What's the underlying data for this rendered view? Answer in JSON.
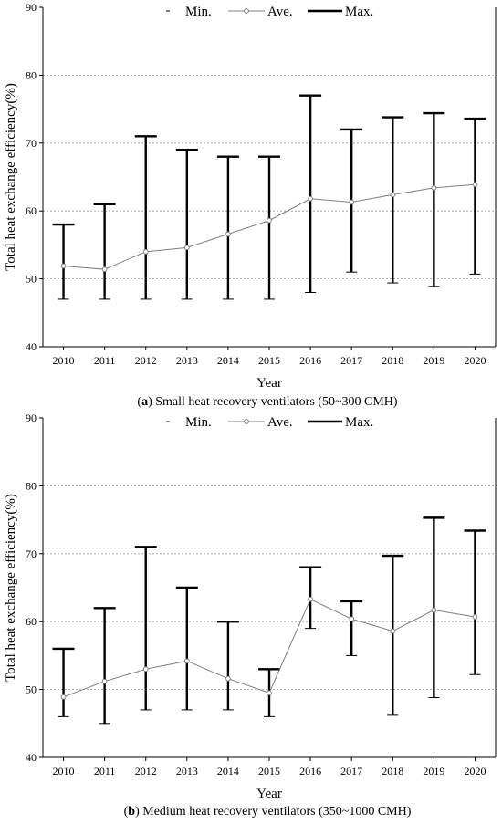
{
  "chart_data": [
    {
      "type": "line",
      "panel_letter": "a",
      "caption": "Small heat recovery ventilators (50~300 CMH)",
      "xlabel": "Year",
      "ylabel": "Total heat exchange efficiency(%)",
      "ylim": [
        40,
        90
      ],
      "yticks": [
        40,
        50,
        60,
        70,
        80,
        90
      ],
      "grid": "horizontal dashed",
      "legend_position": "top",
      "categories": [
        "2010",
        "2011",
        "2012",
        "2013",
        "2014",
        "2015",
        "2016",
        "2017",
        "2018",
        "2019",
        "2020"
      ],
      "series": [
        {
          "name": "Min.",
          "values": [
            47,
            47,
            47,
            47,
            47,
            47,
            48,
            51,
            49.4,
            48.9,
            50.7
          ]
        },
        {
          "name": "Ave.",
          "values": [
            51.9,
            51.4,
            54.0,
            54.6,
            56.6,
            58.6,
            61.8,
            61.3,
            62.4,
            63.4,
            63.9
          ]
        },
        {
          "name": "Max.",
          "values": [
            58,
            61,
            71,
            69,
            68,
            68,
            77,
            72,
            73.8,
            74.4,
            73.6
          ]
        }
      ]
    },
    {
      "type": "line",
      "panel_letter": "b",
      "caption": "Medium heat recovery ventilators (350~1000 CMH)",
      "xlabel": "Year",
      "ylabel": "Total heat exchange efficiency(%)",
      "ylim": [
        40,
        90
      ],
      "yticks": [
        40,
        50,
        60,
        70,
        80,
        90
      ],
      "grid": "horizontal dashed",
      "legend_position": "top",
      "categories": [
        "2010",
        "2011",
        "2012",
        "2013",
        "2014",
        "2015",
        "2016",
        "2017",
        "2018",
        "2019",
        "2020"
      ],
      "series": [
        {
          "name": "Min.",
          "values": [
            46,
            45,
            47,
            47,
            47,
            46,
            59,
            55,
            46.2,
            48.8,
            52.2
          ]
        },
        {
          "name": "Ave.",
          "values": [
            48.9,
            51.2,
            53.0,
            54.2,
            51.6,
            49.5,
            63.3,
            60.4,
            58.6,
            61.7,
            60.7
          ]
        },
        {
          "name": "Max.",
          "values": [
            56,
            62,
            71,
            65,
            60,
            53,
            68,
            63,
            69.7,
            75.3,
            73.4
          ]
        }
      ]
    }
  ]
}
